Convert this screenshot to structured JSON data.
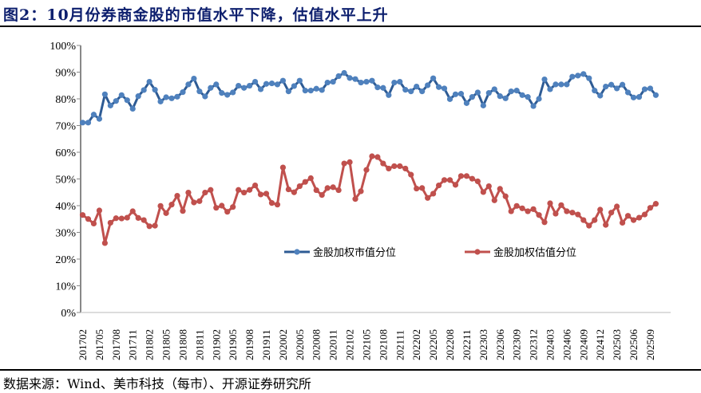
{
  "title": "图2：10月份券商金股的市值水平下降，估值水平上升",
  "source": "数据来源：Wind、美市科技（每市）、开源证券研究所",
  "chart_data": {
    "type": "line",
    "ylim": [
      0,
      100
    ],
    "yticks": [
      "0%",
      "10%",
      "20%",
      "30%",
      "40%",
      "50%",
      "60%",
      "70%",
      "80%",
      "90%",
      "100%"
    ],
    "grid": false,
    "legend_position": "center",
    "categories": [
      "201702",
      "201703",
      "201704",
      "201705",
      "201706",
      "201707",
      "201708",
      "201709",
      "201710",
      "201711",
      "201712",
      "201801",
      "201802",
      "201803",
      "201804",
      "201805",
      "201806",
      "201807",
      "201808",
      "201809",
      "201810",
      "201811",
      "201812",
      "201901",
      "201902",
      "201903",
      "201904",
      "201905",
      "201906",
      "201907",
      "201908",
      "201909",
      "201910",
      "201911",
      "201912",
      "202001",
      "202002",
      "202003",
      "202004",
      "202005",
      "202006",
      "202007",
      "202008",
      "202009",
      "202010",
      "202011",
      "202012",
      "202101",
      "202102",
      "202103",
      "202104",
      "202105",
      "202106",
      "202107",
      "202108",
      "202109",
      "202110",
      "202111",
      "202112",
      "202201",
      "202202",
      "202203",
      "202204",
      "202205",
      "202206",
      "202207",
      "202208",
      "202209",
      "202210",
      "202211",
      "202212",
      "202301",
      "202303",
      "202304",
      "202305",
      "202306",
      "202307",
      "202308",
      "202309",
      "202310",
      "202311",
      "202312",
      "202401",
      "202402",
      "202403",
      "202404",
      "202405",
      "202406",
      "202407",
      "202408",
      "202409",
      "202410",
      "202411",
      "202412",
      "202501",
      "202502",
      "202503",
      "202504",
      "202505",
      "202506",
      "202507",
      "202508",
      "202509",
      "202510"
    ],
    "xtick_labels": [
      "201702",
      "201705",
      "201708",
      "201711",
      "201802",
      "201805",
      "201808",
      "201811",
      "201902",
      "201905",
      "201908",
      "201911",
      "202002",
      "202005",
      "202008",
      "202011",
      "202102",
      "202105",
      "202108",
      "202111",
      "202202",
      "202205",
      "202208",
      "202211",
      "202303",
      "202306",
      "202309",
      "202312",
      "202403",
      "202406",
      "202409",
      "202412",
      "202503",
      "202506",
      "202509"
    ],
    "series": [
      {
        "name": "金股加权市值分位",
        "color": "#4f81bd",
        "line_color": "#2e5b94",
        "values": [
          71.1,
          71.1,
          74.1,
          72.5,
          81.7,
          77.5,
          79.2,
          81.4,
          79.5,
          76.3,
          81.0,
          83.3,
          86.4,
          83.4,
          79.0,
          80.6,
          80.2,
          80.8,
          82.5,
          85.4,
          87.6,
          82.8,
          80.9,
          84.1,
          85.4,
          82.2,
          81.5,
          82.4,
          84.9,
          84.1,
          84.9,
          86.4,
          83.6,
          85.6,
          85.8,
          85.4,
          86.8,
          82.8,
          84.8,
          86.8,
          83.1,
          83.1,
          83.8,
          83.3,
          86.1,
          86.4,
          88.5,
          89.7,
          87.8,
          87.4,
          86.1,
          86.4,
          86.8,
          84.3,
          84.1,
          81.4,
          86.1,
          86.4,
          83.4,
          82.8,
          84.6,
          82.8,
          85.1,
          87.7,
          84.4,
          83.9,
          79.9,
          81.7,
          81.9,
          78.4,
          80.7,
          82.4,
          77.5,
          82.2,
          83.6,
          81.0,
          80.2,
          82.8,
          83.1,
          81.4,
          80.7,
          77.3,
          80.0,
          87.3,
          83.6,
          85.4,
          85.4,
          85.4,
          88.3,
          88.7,
          89.3,
          87.7,
          83.1,
          81.2,
          84.6,
          85.3,
          83.9,
          85.3,
          82.4,
          80.5,
          80.7,
          83.6,
          83.9,
          81.4
        ]
      },
      {
        "name": "金股加权估值分位",
        "color": "#c0504d",
        "line_color": "#c0504d",
        "values": [
          36.5,
          35.0,
          33.3,
          38.2,
          26.0,
          33.6,
          35.3,
          35.2,
          35.5,
          37.9,
          35.4,
          34.6,
          32.3,
          32.5,
          39.9,
          37.2,
          40.4,
          43.7,
          38.0,
          44.9,
          41.2,
          41.7,
          44.9,
          45.9,
          39.2,
          40.0,
          37.7,
          39.5,
          45.9,
          44.9,
          45.9,
          47.6,
          44.2,
          44.5,
          41.0,
          40.4,
          54.3,
          46.1,
          45.0,
          47.3,
          48.9,
          50.3,
          45.8,
          44.0,
          46.6,
          46.9,
          45.8,
          55.8,
          56.3,
          42.5,
          45.4,
          53.4,
          58.5,
          58.2,
          55.8,
          53.9,
          54.8,
          54.8,
          53.9,
          51.6,
          46.4,
          46.6,
          42.9,
          44.5,
          47.6,
          49.6,
          49.6,
          47.8,
          51.1,
          51.1,
          50.1,
          49.1,
          45.1,
          47.3,
          42.0,
          46.3,
          43.5,
          37.9,
          39.9,
          39.0,
          37.9,
          38.7,
          36.5,
          33.8,
          40.9,
          37.0,
          40.2,
          37.9,
          37.4,
          36.7,
          34.6,
          32.5,
          34.6,
          38.5,
          32.8,
          37.4,
          39.7,
          33.6,
          36.2,
          34.6,
          35.5,
          36.7,
          39.2,
          40.7
        ]
      }
    ]
  }
}
